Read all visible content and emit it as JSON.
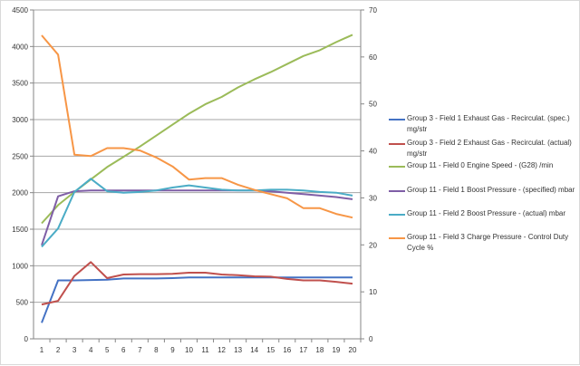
{
  "chart_data": {
    "type": "line",
    "title": "",
    "x": [
      1,
      2,
      3,
      4,
      5,
      6,
      7,
      8,
      9,
      10,
      11,
      12,
      13,
      14,
      15,
      16,
      17,
      18,
      19,
      20
    ],
    "ylim": [
      0,
      4500
    ],
    "y_ticks": [
      0,
      500,
      1000,
      1500,
      2000,
      2500,
      3000,
      3500,
      4000,
      4500
    ],
    "y2lim": [
      0,
      70
    ],
    "y2_ticks": [
      0,
      10,
      20,
      30,
      40,
      50,
      60,
      70
    ],
    "grid": true,
    "legend_position": "right",
    "series": [
      {
        "name": "Group 3 - Field 1 Exhaust Gas - Recirculat. (spec.)  mg/str",
        "color": "#4472c4",
        "axis": "left",
        "values": [
          220,
          800,
          800,
          805,
          810,
          825,
          825,
          825,
          830,
          840,
          840,
          840,
          840,
          840,
          840,
          840,
          840,
          840,
          840,
          840
        ]
      },
      {
        "name": "Group 3 - Field 2 Exhaust Gas - Recirculat. (actual)  mg/str",
        "color": "#c0504d",
        "axis": "left",
        "values": [
          470,
          520,
          860,
          1050,
          830,
          880,
          885,
          885,
          890,
          905,
          905,
          880,
          870,
          855,
          850,
          820,
          800,
          800,
          780,
          755
        ]
      },
      {
        "name": "Group 11 - Field 0 Engine Speed - (G28)  /min",
        "color": "#9bbb59",
        "axis": "left",
        "values": [
          1580,
          1830,
          2010,
          2180,
          2350,
          2490,
          2630,
          2780,
          2930,
          3080,
          3210,
          3310,
          3440,
          3550,
          3650,
          3760,
          3870,
          3950,
          4060,
          4160
        ]
      },
      {
        "name": "Group 11 - Field 1 Boost Pressure - (specified)  mbar",
        "color": "#7f5ea6",
        "axis": "left",
        "values": [
          1280,
          1950,
          2020,
          2030,
          2030,
          2030,
          2030,
          2030,
          2030,
          2030,
          2030,
          2030,
          2030,
          2030,
          2020,
          2000,
          1980,
          1960,
          1940,
          1910
        ]
      },
      {
        "name": "Group 11 - Field 2 Boost Pressure - (actual)  mbar",
        "color": "#4bacc6",
        "axis": "left",
        "values": [
          1260,
          1510,
          2010,
          2190,
          2020,
          2000,
          2010,
          2030,
          2070,
          2100,
          2070,
          2040,
          2030,
          2030,
          2040,
          2040,
          2030,
          2010,
          2000,
          1960
        ]
      },
      {
        "name": "Group 11 - Field 3 Charge Pressure - Control Duty Cycle  %",
        "color": "#f79646",
        "axis": "right",
        "values": [
          64.6,
          60.5,
          39.2,
          38.9,
          40.6,
          40.6,
          40.1,
          38.6,
          36.7,
          33.9,
          34.2,
          34.2,
          32.8,
          31.7,
          30.8,
          29.9,
          27.8,
          27.8,
          26.6,
          25.8
        ]
      }
    ]
  }
}
